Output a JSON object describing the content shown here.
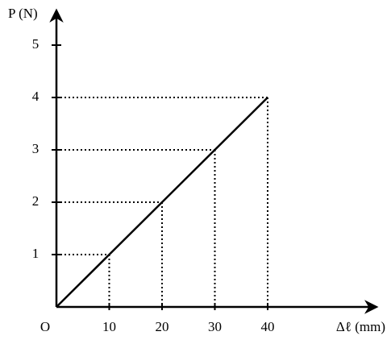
{
  "chart_data": {
    "type": "line",
    "y_label": "P (N)",
    "x_label": "Δℓ (mm)",
    "origin_label": "O",
    "x": [
      0,
      10,
      20,
      30,
      40
    ],
    "series": [
      {
        "color": "#000000",
        "values": [
          0,
          1,
          2,
          3,
          4
        ]
      }
    ],
    "xlim": [
      0,
      60
    ],
    "ylim": [
      0,
      5.6
    ],
    "xticks": [
      10,
      20,
      30,
      40
    ],
    "yticks": [
      1,
      2,
      3,
      4,
      5
    ],
    "guides": true
  }
}
